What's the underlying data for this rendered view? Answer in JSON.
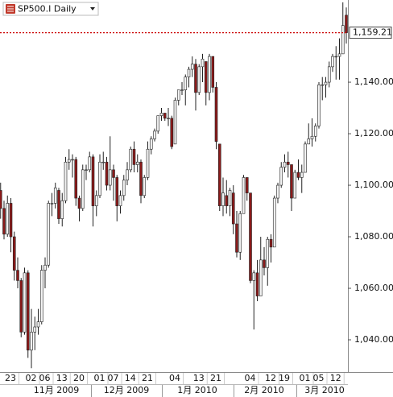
{
  "chart_data": {
    "type": "candlestick",
    "title": "SP500.I Daily",
    "categories": [
      null,
      null,
      null,
      "23",
      null,
      null,
      null,
      null,
      null,
      "02",
      null,
      null,
      null,
      "06",
      null,
      null,
      null,
      null,
      "13",
      null,
      null,
      null,
      null,
      "20",
      null,
      null,
      null,
      null,
      null,
      "01",
      null,
      null,
      null,
      "07",
      null,
      null,
      null,
      null,
      "14",
      null,
      null,
      null,
      null,
      "21",
      null,
      null,
      null,
      null,
      null,
      null,
      null,
      "04",
      null,
      null,
      null,
      null,
      null,
      null,
      "13",
      null,
      null,
      null,
      null,
      "21",
      null,
      null,
      null,
      null,
      null,
      null,
      null,
      null,
      null,
      "04",
      null,
      null,
      null,
      null,
      null,
      "12",
      null,
      null,
      null,
      "19",
      null,
      null,
      null,
      null,
      null,
      "01",
      null,
      null,
      null,
      "05",
      null,
      null,
      null,
      null,
      "12",
      null,
      null,
      null
    ],
    "month_labels": [
      "11月 2009",
      "12月 2009",
      "1月 2010",
      "2月 2010",
      "3月 2010"
    ],
    "open": [
      1098,
      1091,
      1081,
      1093,
      1080,
      1067,
      1063,
      1043,
      1066,
      1036,
      1043,
      1045,
      1047,
      1067,
      1069,
      1093,
      1093,
      1098,
      1087,
      1094,
      1109,
      1110,
      1110,
      1095,
      1091,
      1106,
      1106,
      1111,
      1092,
      1096,
      1109,
      1109,
      1100,
      1106,
      1103,
      1092,
      1096,
      1102,
      1106,
      1114,
      1108,
      1109,
      1096,
      1103,
      1114,
      1118,
      1121,
      1127,
      1128,
      1126,
      1126,
      1116,
      1133,
      1137,
      1137,
      1142,
      1145,
      1147,
      1136,
      1146,
      1148,
      1136,
      1150,
      1138,
      1116,
      1092,
      1096,
      1092,
      1097,
      1085,
      1074,
      1089,
      1103,
      1097,
      1063,
      1066,
      1057,
      1071,
      1068,
      1079,
      1076,
      1095,
      1100,
      1107,
      1109,
      1108,
      1095,
      1105,
      1103,
      1105,
      1116,
      1118,
      1119,
      1123,
      1139,
      1139,
      1140,
      1146,
      1150,
      1150,
      1151,
      1166
    ],
    "high": [
      1101,
      1094,
      1096,
      1095,
      1082,
      1072,
      1064,
      1068,
      1067,
      1052,
      1049,
      1052,
      1069,
      1072,
      1094,
      1097,
      1101,
      1099,
      1097,
      1111,
      1114,
      1112,
      1111,
      1096,
      1108,
      1108,
      1113,
      1112,
      1098,
      1112,
      1113,
      1111,
      1119,
      1108,
      1104,
      1098,
      1104,
      1109,
      1115,
      1117,
      1112,
      1110,
      1104,
      1117,
      1119,
      1122,
      1127,
      1130,
      1128,
      1130,
      1127,
      1134,
      1137,
      1140,
      1143,
      1146,
      1150,
      1149,
      1147,
      1151,
      1148,
      1151,
      1150,
      1140,
      1116,
      1103,
      1102,
      1099,
      1100,
      1090,
      1090,
      1104,
      1103,
      1097,
      1067,
      1071,
      1080,
      1076,
      1080,
      1081,
      1096,
      1101,
      1109,
      1112,
      1113,
      1108,
      1106,
      1110,
      1108,
      1117,
      1124,
      1126,
      1124,
      1140,
      1142,
      1142,
      1148,
      1151,
      1154,
      1157,
      1171,
      1169
    ],
    "low": [
      1087,
      1079,
      1080,
      1074,
      1063,
      1060,
      1041,
      1042,
      1033,
      1029,
      1036,
      1042,
      1046,
      1060,
      1068,
      1088,
      1091,
      1085,
      1084,
      1093,
      1106,
      1103,
      1092,
      1086,
      1090,
      1102,
      1105,
      1084,
      1088,
      1095,
      1106,
      1098,
      1098,
      1094,
      1086,
      1089,
      1094,
      1100,
      1105,
      1105,
      1105,
      1093,
      1095,
      1102,
      1112,
      1117,
      1120,
      1125,
      1125,
      1123,
      1114,
      1116,
      1131,
      1135,
      1131,
      1138,
      1142,
      1129,
      1135,
      1140,
      1131,
      1133,
      1136,
      1114,
      1090,
      1088,
      1089,
      1088,
      1081,
      1072,
      1071,
      1089,
      1094,
      1062,
      1044,
      1055,
      1057,
      1065,
      1061,
      1070,
      1076,
      1093,
      1099,
      1105,
      1103,
      1090,
      1095,
      1102,
      1097,
      1105,
      1116,
      1115,
      1117,
      1122,
      1133,
      1134,
      1138,
      1144,
      1141,
      1141,
      1151,
      1155
    ],
    "close": [
      1091,
      1081,
      1093,
      1080,
      1067,
      1063,
      1043,
      1066,
      1036,
      1043,
      1045,
      1047,
      1067,
      1069,
      1093,
      1093,
      1099,
      1087,
      1094,
      1109,
      1110,
      1110,
      1095,
      1091,
      1106,
      1106,
      1111,
      1092,
      1096,
      1109,
      1109,
      1100,
      1106,
      1103,
      1092,
      1096,
      1102,
      1106,
      1114,
      1108,
      1109,
      1096,
      1103,
      1114,
      1118,
      1121,
      1127,
      1128,
      1126,
      1126,
      1115,
      1133,
      1137,
      1137,
      1142,
      1145,
      1147,
      1136,
      1146,
      1149,
      1136,
      1150,
      1138,
      1117,
      1092,
      1097,
      1092,
      1098,
      1085,
      1074,
      1089,
      1103,
      1097,
      1063,
      1066,
      1057,
      1071,
      1068,
      1079,
      1076,
      1095,
      1100,
      1107,
      1109,
      1108,
      1095,
      1105,
      1103,
      1105,
      1116,
      1118,
      1119,
      1123,
      1139,
      1139,
      1140,
      1146,
      1150,
      1150,
      1151,
      1162,
      1159.21
    ],
    "ylim": [
      1027.5,
      1171.9
    ],
    "yticks": [
      {
        "value": 1040,
        "label": "1,040.00"
      },
      {
        "value": 1060,
        "label": "1,060.00"
      },
      {
        "value": 1080,
        "label": "1,080.00"
      },
      {
        "value": 1100,
        "label": "1,100.00"
      },
      {
        "value": 1120,
        "label": "1,120.00"
      },
      {
        "value": 1140,
        "label": "1,140.00"
      }
    ],
    "last_price": {
      "value": 1159.21,
      "label": "1,159.21"
    },
    "up_color": "#f2f2f2",
    "down_color": "#8b1a1a",
    "price_line_color": "#cc0000"
  }
}
